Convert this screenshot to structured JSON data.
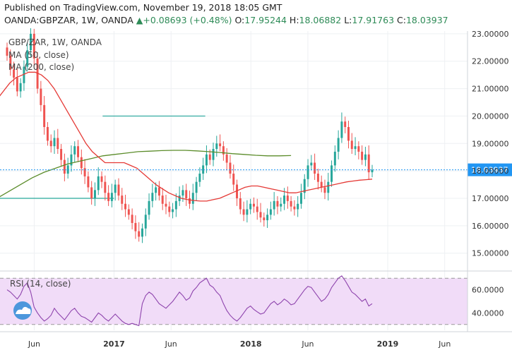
{
  "header": {
    "published": "Published on TradingView.com, November 19, 2018 18:05 GMT",
    "symbol": "OANDA:GBPZAR, 1W, OANDA",
    "change_arrow": "▲",
    "change": "+0.08693 (+0.48%)",
    "o_label": "O:",
    "o_value": "17.95244",
    "h_label": "H:",
    "h_value": "18.06882",
    "l_label": "L:",
    "l_value": "17.91763",
    "c_label": "C:",
    "c_value": "18.03937",
    "close": "18.03937"
  },
  "legend": {
    "title": "GBP/ZAR, 1W, OANDA",
    "ma50": "MA (50, close)",
    "ma200": "MA (200, close)",
    "rsi": "RSI (14, close)"
  },
  "colors": {
    "up": "#26a69a",
    "down": "#ef5350",
    "ma50": "#e53935",
    "ma200": "#5b8c2a",
    "channel": "#26a69a",
    "rsi": "#8e44ad",
    "rsi_band": "#f1dcf8",
    "last_price": "#2196f3"
  },
  "chart_data": {
    "type": "candlestick",
    "title": "GBP/ZAR, 1W, OANDA",
    "x_ticks": [
      "Jun",
      "2017",
      "Jun",
      "2018",
      "Jun",
      "2019",
      "Jun"
    ],
    "x_tick_dates": [
      "2016-06",
      "2017-01",
      "2017-06",
      "2018-01",
      "2018-06",
      "2019-01",
      "2019-06"
    ],
    "x_range": [
      "2016-03",
      "2019-08"
    ],
    "y_ticks": [
      "15.00000",
      "16.00000",
      "17.00000",
      "18.00000",
      "19.00000",
      "20.00000",
      "21.00000",
      "22.00000",
      "23.00000"
    ],
    "ylim": [
      14.4,
      23.1
    ],
    "last_price": 18.03937,
    "close_series": [
      22.2,
      21.7,
      21.4,
      20.9,
      21.2,
      21.8,
      22.4,
      23.0,
      22.1,
      21.0,
      20.4,
      19.6,
      19.1,
      18.9,
      19.2,
      18.8,
      18.4,
      17.9,
      18.2,
      18.6,
      18.9,
      18.5,
      18.1,
      17.8,
      17.4,
      17.0,
      17.3,
      17.8,
      17.6,
      17.2,
      16.9,
      17.2,
      17.5,
      17.1,
      16.8,
      16.6,
      16.4,
      16.1,
      15.8,
      15.6,
      15.9,
      16.4,
      16.9,
      17.2,
      17.4,
      17.1,
      16.8,
      16.7,
      16.5,
      16.6,
      16.9,
      17.1,
      17.3,
      17.0,
      16.8,
      17.2,
      17.6,
      17.9,
      18.2,
      18.6,
      18.4,
      18.8,
      19.0,
      18.9,
      18.6,
      18.3,
      17.9,
      17.5,
      17.0,
      16.6,
      16.4,
      16.6,
      16.8,
      16.7,
      16.5,
      16.3,
      16.2,
      16.4,
      16.6,
      16.9,
      16.7,
      16.8,
      17.1,
      16.9,
      16.7,
      16.6,
      16.8,
      17.2,
      17.7,
      18.2,
      18.3,
      17.9,
      17.6,
      17.4,
      17.2,
      17.6,
      18.2,
      18.7,
      19.2,
      19.8,
      19.6,
      19.1,
      18.8,
      18.9,
      18.7,
      18.4,
      18.6,
      17.95,
      18.04
    ],
    "ma50_series": [
      20.6,
      20.9,
      21.2,
      21.4,
      21.5,
      21.6,
      21.6,
      21.5,
      21.3,
      21.0,
      20.6,
      20.2,
      19.8,
      19.4,
      19.0,
      18.7,
      18.5,
      18.3,
      18.3,
      18.3,
      18.3,
      18.2,
      18.1,
      17.9,
      17.7,
      17.5,
      17.35,
      17.2,
      17.1,
      17.0,
      16.95,
      16.92,
      16.9,
      16.9,
      16.95,
      17.0,
      17.1,
      17.2,
      17.3,
      17.4,
      17.45,
      17.45,
      17.4,
      17.35,
      17.3,
      17.25,
      17.2,
      17.2,
      17.25,
      17.3,
      17.35,
      17.4,
      17.45,
      17.5,
      17.55,
      17.6,
      17.63,
      17.66,
      17.68,
      17.7
    ],
    "ma200_series": [
      17.0,
      17.25,
      17.5,
      17.75,
      17.95,
      18.1,
      18.25,
      18.35,
      18.45,
      18.55,
      18.6,
      18.65,
      18.7,
      18.72,
      18.74,
      18.75,
      18.75,
      18.73,
      18.7,
      18.67,
      18.63,
      18.6,
      18.57,
      18.55,
      18.55,
      18.56
    ],
    "channel_upper": [
      [
        16.9,
        17.7
      ],
      [
        20.0,
        20.0
      ]
    ],
    "channel_lower": [
      [
        15.3,
        17.0
      ],
      [
        17.0,
        17.0
      ]
    ],
    "rsi": {
      "title": "RSI (14, close)",
      "y_ticks": [
        "40.0000",
        "60.0000"
      ],
      "bands": [
        30,
        70
      ],
      "values": [
        60,
        58,
        55,
        52,
        56,
        63,
        66,
        58,
        45,
        40,
        36,
        33,
        35,
        38,
        44,
        40,
        37,
        34,
        38,
        42,
        44,
        40,
        37,
        36,
        34,
        32,
        36,
        40,
        38,
        35,
        33,
        36,
        39,
        36,
        33,
        31,
        30,
        31,
        30,
        29,
        48,
        55,
        58,
        56,
        52,
        48,
        46,
        44,
        47,
        50,
        54,
        58,
        55,
        51,
        53,
        59,
        62,
        66,
        68,
        70,
        64,
        62,
        58,
        55,
        48,
        42,
        38,
        35,
        33,
        36,
        40,
        44,
        46,
        43,
        41,
        39,
        40,
        44,
        48,
        50,
        47,
        49,
        52,
        50,
        47,
        48,
        52,
        56,
        60,
        63,
        62,
        58,
        54,
        50,
        52,
        56,
        62,
        66,
        70,
        72,
        68,
        63,
        58,
        56,
        53,
        50,
        52,
        46,
        48
      ]
    }
  }
}
